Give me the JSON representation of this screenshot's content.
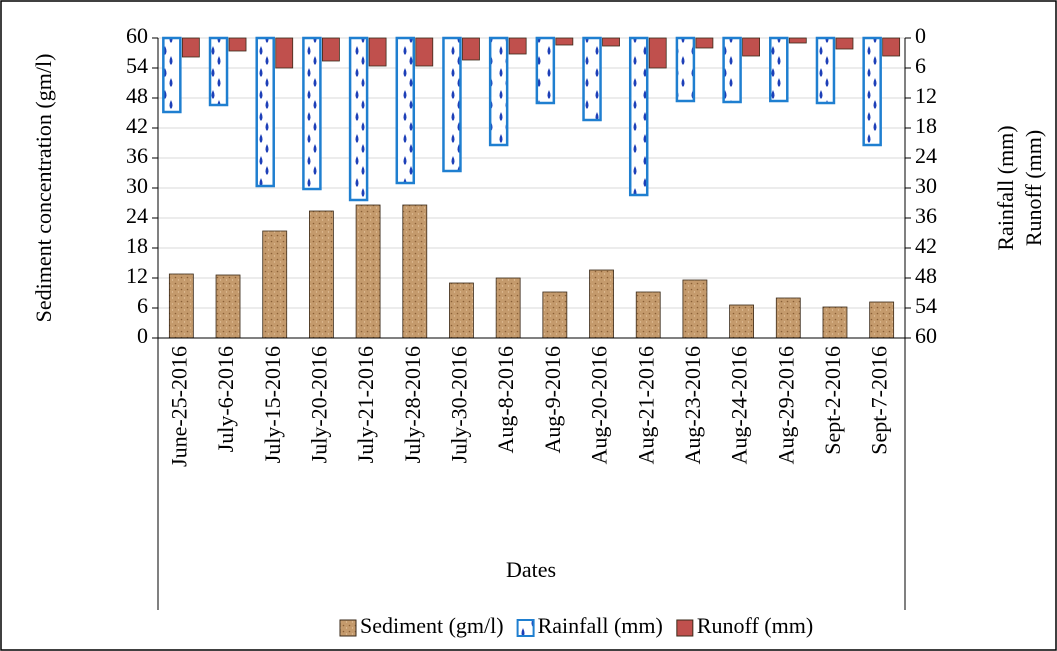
{
  "chart_data": {
    "type": "bar",
    "x_label": "Dates",
    "y_label": "Sediment concentration (gm/l)",
    "y2_labels": [
      "Rainfall (mm)",
      "Runoff (mm)"
    ],
    "categories": [
      "June-25-2016",
      "July-6-2016",
      "July-15-2016",
      "July-20-2016",
      "July-21-2016",
      "July-28-2016",
      "July-30-2016",
      "Aug-8-2016",
      "Aug-9-2016",
      "Aug-20-2016",
      "Aug-21-2016",
      "Aug-23-2016",
      "Aug-24-2016",
      "Aug-29-2016",
      "Sept-2-2016",
      "Sept-7-2016"
    ],
    "series": [
      {
        "name": "Sediment (gm/l)",
        "color": "#c49a6c",
        "axis": "y",
        "values": [
          12.8,
          12.6,
          21.4,
          25.4,
          26.6,
          26.6,
          11,
          12,
          9.2,
          13.6,
          9.2,
          11.6,
          6.6,
          8,
          6.2,
          7.2
        ]
      },
      {
        "name": "Rainfall (mm)",
        "color": "#1f7fd0",
        "axis": "y2",
        "values": [
          14.8,
          13.4,
          29.6,
          30.2,
          32.4,
          29,
          26.6,
          21.4,
          13,
          16.4,
          31.4,
          12.6,
          12.8,
          12.6,
          13,
          21.4
        ]
      },
      {
        "name": "Runoff (mm)",
        "color": "#c0504d",
        "axis": "y2",
        "values": [
          3.8,
          2.6,
          6,
          4.6,
          5.6,
          5.6,
          4.4,
          3.2,
          1.4,
          1.6,
          6,
          2,
          3.6,
          1,
          2.2,
          3.6
        ]
      }
    ],
    "ylim": [
      0,
      60
    ],
    "yticks": [
      0,
      6,
      12,
      18,
      24,
      30,
      36,
      42,
      48,
      54,
      60
    ],
    "y2lim": [
      0,
      60
    ],
    "y2ticks": [
      0,
      6,
      12,
      18,
      24,
      30,
      36,
      42,
      48,
      54,
      60
    ],
    "y2_inverted": true,
    "grid": true,
    "legend": "bottom"
  }
}
